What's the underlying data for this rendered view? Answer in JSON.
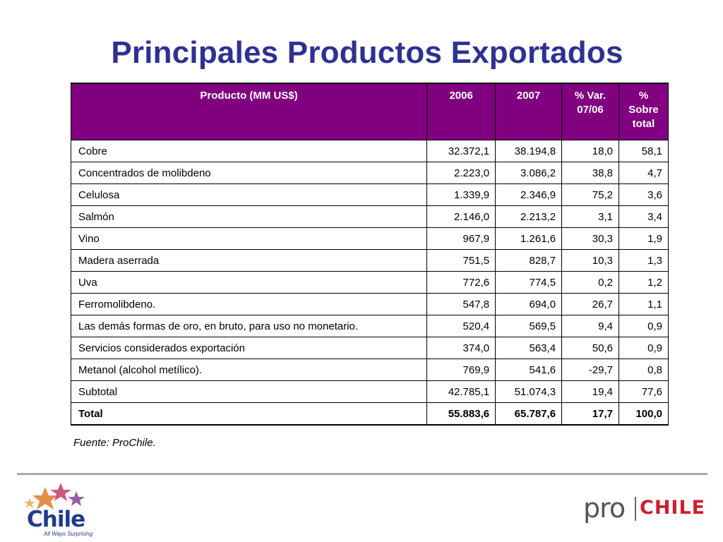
{
  "title": "Principales Productos Exportados",
  "table": {
    "headers": [
      "Producto (MM US$)",
      "2006",
      "2007",
      "% Var. 07/06",
      "% Sobre total"
    ],
    "rows": [
      [
        "Cobre",
        "32.372,1",
        "38.194,8",
        "18,0",
        "58,1"
      ],
      [
        "Concentrados de molibdeno",
        "2.223,0",
        "3.086,2",
        "38,8",
        "4,7"
      ],
      [
        "Celulosa",
        "1.339,9",
        "2.346,9",
        "75,2",
        "3,6"
      ],
      [
        "Salmón",
        "2.146,0",
        "2.213,2",
        "3,1",
        "3,4"
      ],
      [
        "Vino",
        "967,9",
        "1.261,6",
        "30,3",
        "1,9"
      ],
      [
        "Madera aserrada",
        "751,5",
        "828,7",
        "10,3",
        "1,3"
      ],
      [
        "Uva",
        "772,6",
        "774,5",
        "0,2",
        "1,2"
      ],
      [
        "Ferromolibdeno.",
        "547,8",
        "694,0",
        "26,7",
        "1,1"
      ],
      [
        "Las demás formas de oro, en bruto, para uso no monetario.",
        "520,4",
        "569,5",
        "9,4",
        "0,9"
      ],
      [
        "Servicios considerados exportación",
        "374,0",
        "563,4",
        "50,6",
        "0,9"
      ],
      [
        "Metanol (alcohol metílico).",
        "769,9",
        "541,6",
        "-29,7",
        "0,8"
      ],
      [
        "Subtotal",
        "42.785,1",
        "51.074,3",
        "19,4",
        "77,6"
      ]
    ],
    "total": [
      "Total",
      "55.883,6",
      "65.787,6",
      "17,7",
      "100,0"
    ]
  },
  "source": "Fuente: ProChile.",
  "logos": {
    "chile_word": "Chile",
    "chile_tagline": "All Ways Surprising",
    "prochile_pro": "pro",
    "prochile_chile": "CHILE"
  },
  "colors": {
    "title": "#2e3192",
    "header_bg": "#800080",
    "prochile_red": "#cc1f2f"
  }
}
